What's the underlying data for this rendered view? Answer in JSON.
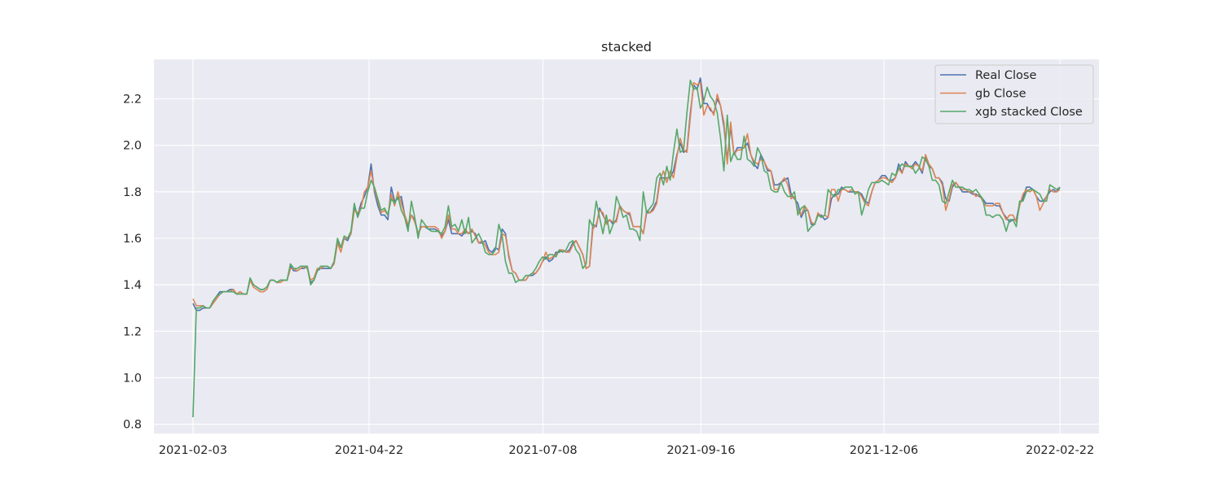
{
  "chart_data": {
    "type": "line",
    "title": "stacked",
    "xlabel": "",
    "ylabel": "",
    "x_start": "2021-02-03",
    "x_end": "2022-02-22",
    "x_tick_labels": [
      "2021-02-03",
      "2021-04-22",
      "2021-07-08",
      "2021-09-16",
      "2021-12-06",
      "2022-02-22"
    ],
    "y_ticks": [
      0.8,
      1.0,
      1.2,
      1.4,
      1.6,
      1.8,
      2.0,
      2.2
    ],
    "ylim": [
      0.76,
      2.37
    ],
    "grid": true,
    "legend_position": "top-right",
    "series": [
      {
        "name": "Real Close",
        "color": "#4c72b0",
        "values": [
          1.32,
          1.29,
          1.29,
          1.3,
          1.3,
          1.3,
          1.33,
          1.35,
          1.37,
          1.37,
          1.37,
          1.38,
          1.38,
          1.36,
          1.37,
          1.36,
          1.36,
          1.42,
          1.4,
          1.39,
          1.38,
          1.38,
          1.39,
          1.42,
          1.42,
          1.41,
          1.42,
          1.42,
          1.42,
          1.48,
          1.46,
          1.46,
          1.47,
          1.47,
          1.48,
          1.41,
          1.42,
          1.46,
          1.47,
          1.47,
          1.47,
          1.47,
          1.5,
          1.59,
          1.56,
          1.6,
          1.59,
          1.62,
          1.73,
          1.7,
          1.75,
          1.78,
          1.82,
          1.92,
          1.8,
          1.74,
          1.7,
          1.7,
          1.68,
          1.82,
          1.76,
          1.77,
          1.78,
          1.7,
          1.65,
          1.7,
          1.68,
          1.62,
          1.65,
          1.65,
          1.64,
          1.64,
          1.64,
          1.63,
          1.61,
          1.63,
          1.68,
          1.62,
          1.62,
          1.62,
          1.61,
          1.63,
          1.62,
          1.63,
          1.62,
          1.58,
          1.58,
          1.59,
          1.55,
          1.54,
          1.56,
          1.55,
          1.64,
          1.62,
          1.52,
          1.46,
          1.45,
          1.42,
          1.42,
          1.42,
          1.44,
          1.44,
          1.45,
          1.47,
          1.5,
          1.52,
          1.5,
          1.51,
          1.54,
          1.54,
          1.55,
          1.54,
          1.55,
          1.58,
          1.59,
          1.56,
          1.53,
          1.47,
          1.48,
          1.66,
          1.65,
          1.73,
          1.7,
          1.67,
          1.68,
          1.66,
          1.68,
          1.74,
          1.72,
          1.71,
          1.7,
          1.65,
          1.65,
          1.65,
          1.62,
          1.71,
          1.71,
          1.73,
          1.76,
          1.86,
          1.86,
          1.86,
          1.86,
          1.89,
          1.96,
          2.01,
          1.97,
          1.98,
          2.14,
          2.26,
          2.24,
          2.29,
          2.18,
          2.18,
          2.15,
          2.14,
          2.2,
          2.17,
          2.08,
          1.94,
          2.08,
          1.96,
          1.99,
          1.99,
          1.99,
          2.01,
          1.96,
          1.92,
          1.9,
          1.96,
          1.93,
          1.89,
          1.89,
          1.83,
          1.83,
          1.84,
          1.85,
          1.86,
          1.79,
          1.77,
          1.75,
          1.69,
          1.72,
          1.72,
          1.66,
          1.66,
          1.7,
          1.7,
          1.68,
          1.69,
          1.77,
          1.79,
          1.79,
          1.82,
          1.81,
          1.8,
          1.8,
          1.8,
          1.8,
          1.79,
          1.76,
          1.75,
          1.8,
          1.84,
          1.85,
          1.87,
          1.87,
          1.85,
          1.85,
          1.86,
          1.92,
          1.88,
          1.93,
          1.91,
          1.91,
          1.93,
          1.91,
          1.88,
          1.95,
          1.91,
          1.9,
          1.86,
          1.86,
          1.84,
          1.77,
          1.76,
          1.82,
          1.84,
          1.82,
          1.8,
          1.8,
          1.8,
          1.79,
          1.79,
          1.78,
          1.77,
          1.75,
          1.75,
          1.75,
          1.74,
          1.74,
          1.71,
          1.69,
          1.67,
          1.68,
          1.68,
          1.75,
          1.77,
          1.82,
          1.82,
          1.81,
          1.78,
          1.76,
          1.76,
          1.78,
          1.8,
          1.81,
          1.8,
          1.82
        ]
      },
      {
        "name": "gb Close",
        "color": "#dd8452",
        "values": [
          1.34,
          1.31,
          1.31,
          1.31,
          1.3,
          1.3,
          1.32,
          1.34,
          1.36,
          1.37,
          1.37,
          1.37,
          1.38,
          1.36,
          1.37,
          1.36,
          1.36,
          1.42,
          1.39,
          1.38,
          1.37,
          1.37,
          1.38,
          1.42,
          1.42,
          1.41,
          1.41,
          1.42,
          1.42,
          1.47,
          1.47,
          1.46,
          1.47,
          1.48,
          1.47,
          1.42,
          1.43,
          1.47,
          1.47,
          1.48,
          1.48,
          1.47,
          1.49,
          1.58,
          1.54,
          1.6,
          1.6,
          1.62,
          1.72,
          1.71,
          1.73,
          1.8,
          1.82,
          1.89,
          1.81,
          1.76,
          1.71,
          1.72,
          1.7,
          1.79,
          1.74,
          1.8,
          1.75,
          1.7,
          1.66,
          1.7,
          1.67,
          1.62,
          1.65,
          1.65,
          1.65,
          1.65,
          1.65,
          1.64,
          1.6,
          1.63,
          1.7,
          1.64,
          1.64,
          1.62,
          1.62,
          1.64,
          1.62,
          1.64,
          1.61,
          1.58,
          1.59,
          1.57,
          1.54,
          1.53,
          1.53,
          1.54,
          1.62,
          1.61,
          1.53,
          1.46,
          1.45,
          1.42,
          1.42,
          1.42,
          1.44,
          1.45,
          1.45,
          1.47,
          1.5,
          1.54,
          1.51,
          1.52,
          1.53,
          1.55,
          1.55,
          1.54,
          1.54,
          1.57,
          1.59,
          1.56,
          1.53,
          1.47,
          1.48,
          1.64,
          1.66,
          1.72,
          1.71,
          1.66,
          1.68,
          1.67,
          1.67,
          1.74,
          1.72,
          1.71,
          1.71,
          1.65,
          1.65,
          1.65,
          1.62,
          1.72,
          1.71,
          1.72,
          1.75,
          1.85,
          1.89,
          1.84,
          1.89,
          1.86,
          1.95,
          2.03,
          1.98,
          1.97,
          2.12,
          2.27,
          2.26,
          2.27,
          2.13,
          2.17,
          2.16,
          2.13,
          2.22,
          2.17,
          2.1,
          1.92,
          2.1,
          1.96,
          1.98,
          1.98,
          1.99,
          2.05,
          1.96,
          1.93,
          1.92,
          1.94,
          1.93,
          1.9,
          1.89,
          1.81,
          1.81,
          1.84,
          1.86,
          1.83,
          1.77,
          1.78,
          1.72,
          1.7,
          1.74,
          1.72,
          1.67,
          1.66,
          1.71,
          1.69,
          1.7,
          1.69,
          1.81,
          1.81,
          1.76,
          1.81,
          1.81,
          1.8,
          1.81,
          1.8,
          1.8,
          1.78,
          1.75,
          1.74,
          1.8,
          1.84,
          1.85,
          1.86,
          1.86,
          1.85,
          1.84,
          1.86,
          1.9,
          1.88,
          1.92,
          1.91,
          1.9,
          1.92,
          1.91,
          1.89,
          1.96,
          1.92,
          1.9,
          1.86,
          1.86,
          1.83,
          1.72,
          1.77,
          1.83,
          1.84,
          1.82,
          1.81,
          1.81,
          1.8,
          1.8,
          1.78,
          1.79,
          1.76,
          1.74,
          1.74,
          1.74,
          1.75,
          1.75,
          1.71,
          1.68,
          1.7,
          1.7,
          1.67,
          1.74,
          1.79,
          1.81,
          1.8,
          1.81,
          1.78,
          1.72,
          1.75,
          1.78,
          1.81,
          1.8,
          1.8,
          1.81
        ]
      },
      {
        "name": "xgb stacked Close",
        "color": "#55a868",
        "values": [
          0.83,
          1.3,
          1.3,
          1.31,
          1.3,
          1.3,
          1.33,
          1.35,
          1.36,
          1.37,
          1.37,
          1.37,
          1.37,
          1.36,
          1.36,
          1.36,
          1.36,
          1.43,
          1.4,
          1.39,
          1.38,
          1.38,
          1.39,
          1.42,
          1.42,
          1.41,
          1.42,
          1.42,
          1.42,
          1.49,
          1.47,
          1.47,
          1.48,
          1.48,
          1.48,
          1.4,
          1.42,
          1.46,
          1.48,
          1.48,
          1.48,
          1.47,
          1.5,
          1.6,
          1.56,
          1.61,
          1.6,
          1.63,
          1.75,
          1.69,
          1.73,
          1.73,
          1.8,
          1.85,
          1.82,
          1.77,
          1.72,
          1.73,
          1.7,
          1.77,
          1.75,
          1.78,
          1.72,
          1.69,
          1.63,
          1.76,
          1.69,
          1.6,
          1.68,
          1.66,
          1.64,
          1.63,
          1.63,
          1.63,
          1.62,
          1.65,
          1.74,
          1.65,
          1.66,
          1.63,
          1.68,
          1.62,
          1.69,
          1.58,
          1.6,
          1.62,
          1.59,
          1.54,
          1.53,
          1.53,
          1.55,
          1.66,
          1.61,
          1.5,
          1.45,
          1.45,
          1.41,
          1.42,
          1.42,
          1.44,
          1.44,
          1.45,
          1.47,
          1.5,
          1.52,
          1.51,
          1.53,
          1.53,
          1.52,
          1.55,
          1.54,
          1.55,
          1.58,
          1.59,
          1.55,
          1.53,
          1.47,
          1.49,
          1.68,
          1.65,
          1.76,
          1.69,
          1.62,
          1.7,
          1.62,
          1.66,
          1.78,
          1.74,
          1.69,
          1.7,
          1.64,
          1.64,
          1.63,
          1.59,
          1.8,
          1.71,
          1.73,
          1.75,
          1.86,
          1.88,
          1.83,
          1.91,
          1.85,
          1.97,
          2.07,
          1.97,
          1.98,
          2.14,
          2.28,
          2.24,
          2.25,
          2.16,
          2.19,
          2.25,
          2.21,
          2.19,
          2.14,
          2.03,
          1.89,
          2.13,
          1.93,
          1.97,
          1.94,
          1.94,
          2.04,
          1.94,
          1.93,
          1.91,
          1.99,
          1.96,
          1.89,
          1.88,
          1.81,
          1.8,
          1.8,
          1.84,
          1.8,
          1.78,
          1.78,
          1.8,
          1.7,
          1.73,
          1.74,
          1.63,
          1.65,
          1.66,
          1.7,
          1.69,
          1.7,
          1.81,
          1.79,
          1.78,
          1.81,
          1.81,
          1.82,
          1.82,
          1.82,
          1.79,
          1.8,
          1.7,
          1.75,
          1.81,
          1.84,
          1.84,
          1.84,
          1.85,
          1.84,
          1.83,
          1.88,
          1.87,
          1.9,
          1.92,
          1.91,
          1.91,
          1.91,
          1.88,
          1.9,
          1.95,
          1.94,
          1.91,
          1.85,
          1.85,
          1.83,
          1.76,
          1.75,
          1.8,
          1.85,
          1.82,
          1.82,
          1.82,
          1.81,
          1.81,
          1.8,
          1.81,
          1.79,
          1.77,
          1.7,
          1.7,
          1.69,
          1.7,
          1.7,
          1.68,
          1.63,
          1.68,
          1.68,
          1.65,
          1.76,
          1.76,
          1.8,
          1.81,
          1.81,
          1.8,
          1.79,
          1.76,
          1.76,
          1.83,
          1.82,
          1.81,
          1.82
        ]
      }
    ]
  }
}
